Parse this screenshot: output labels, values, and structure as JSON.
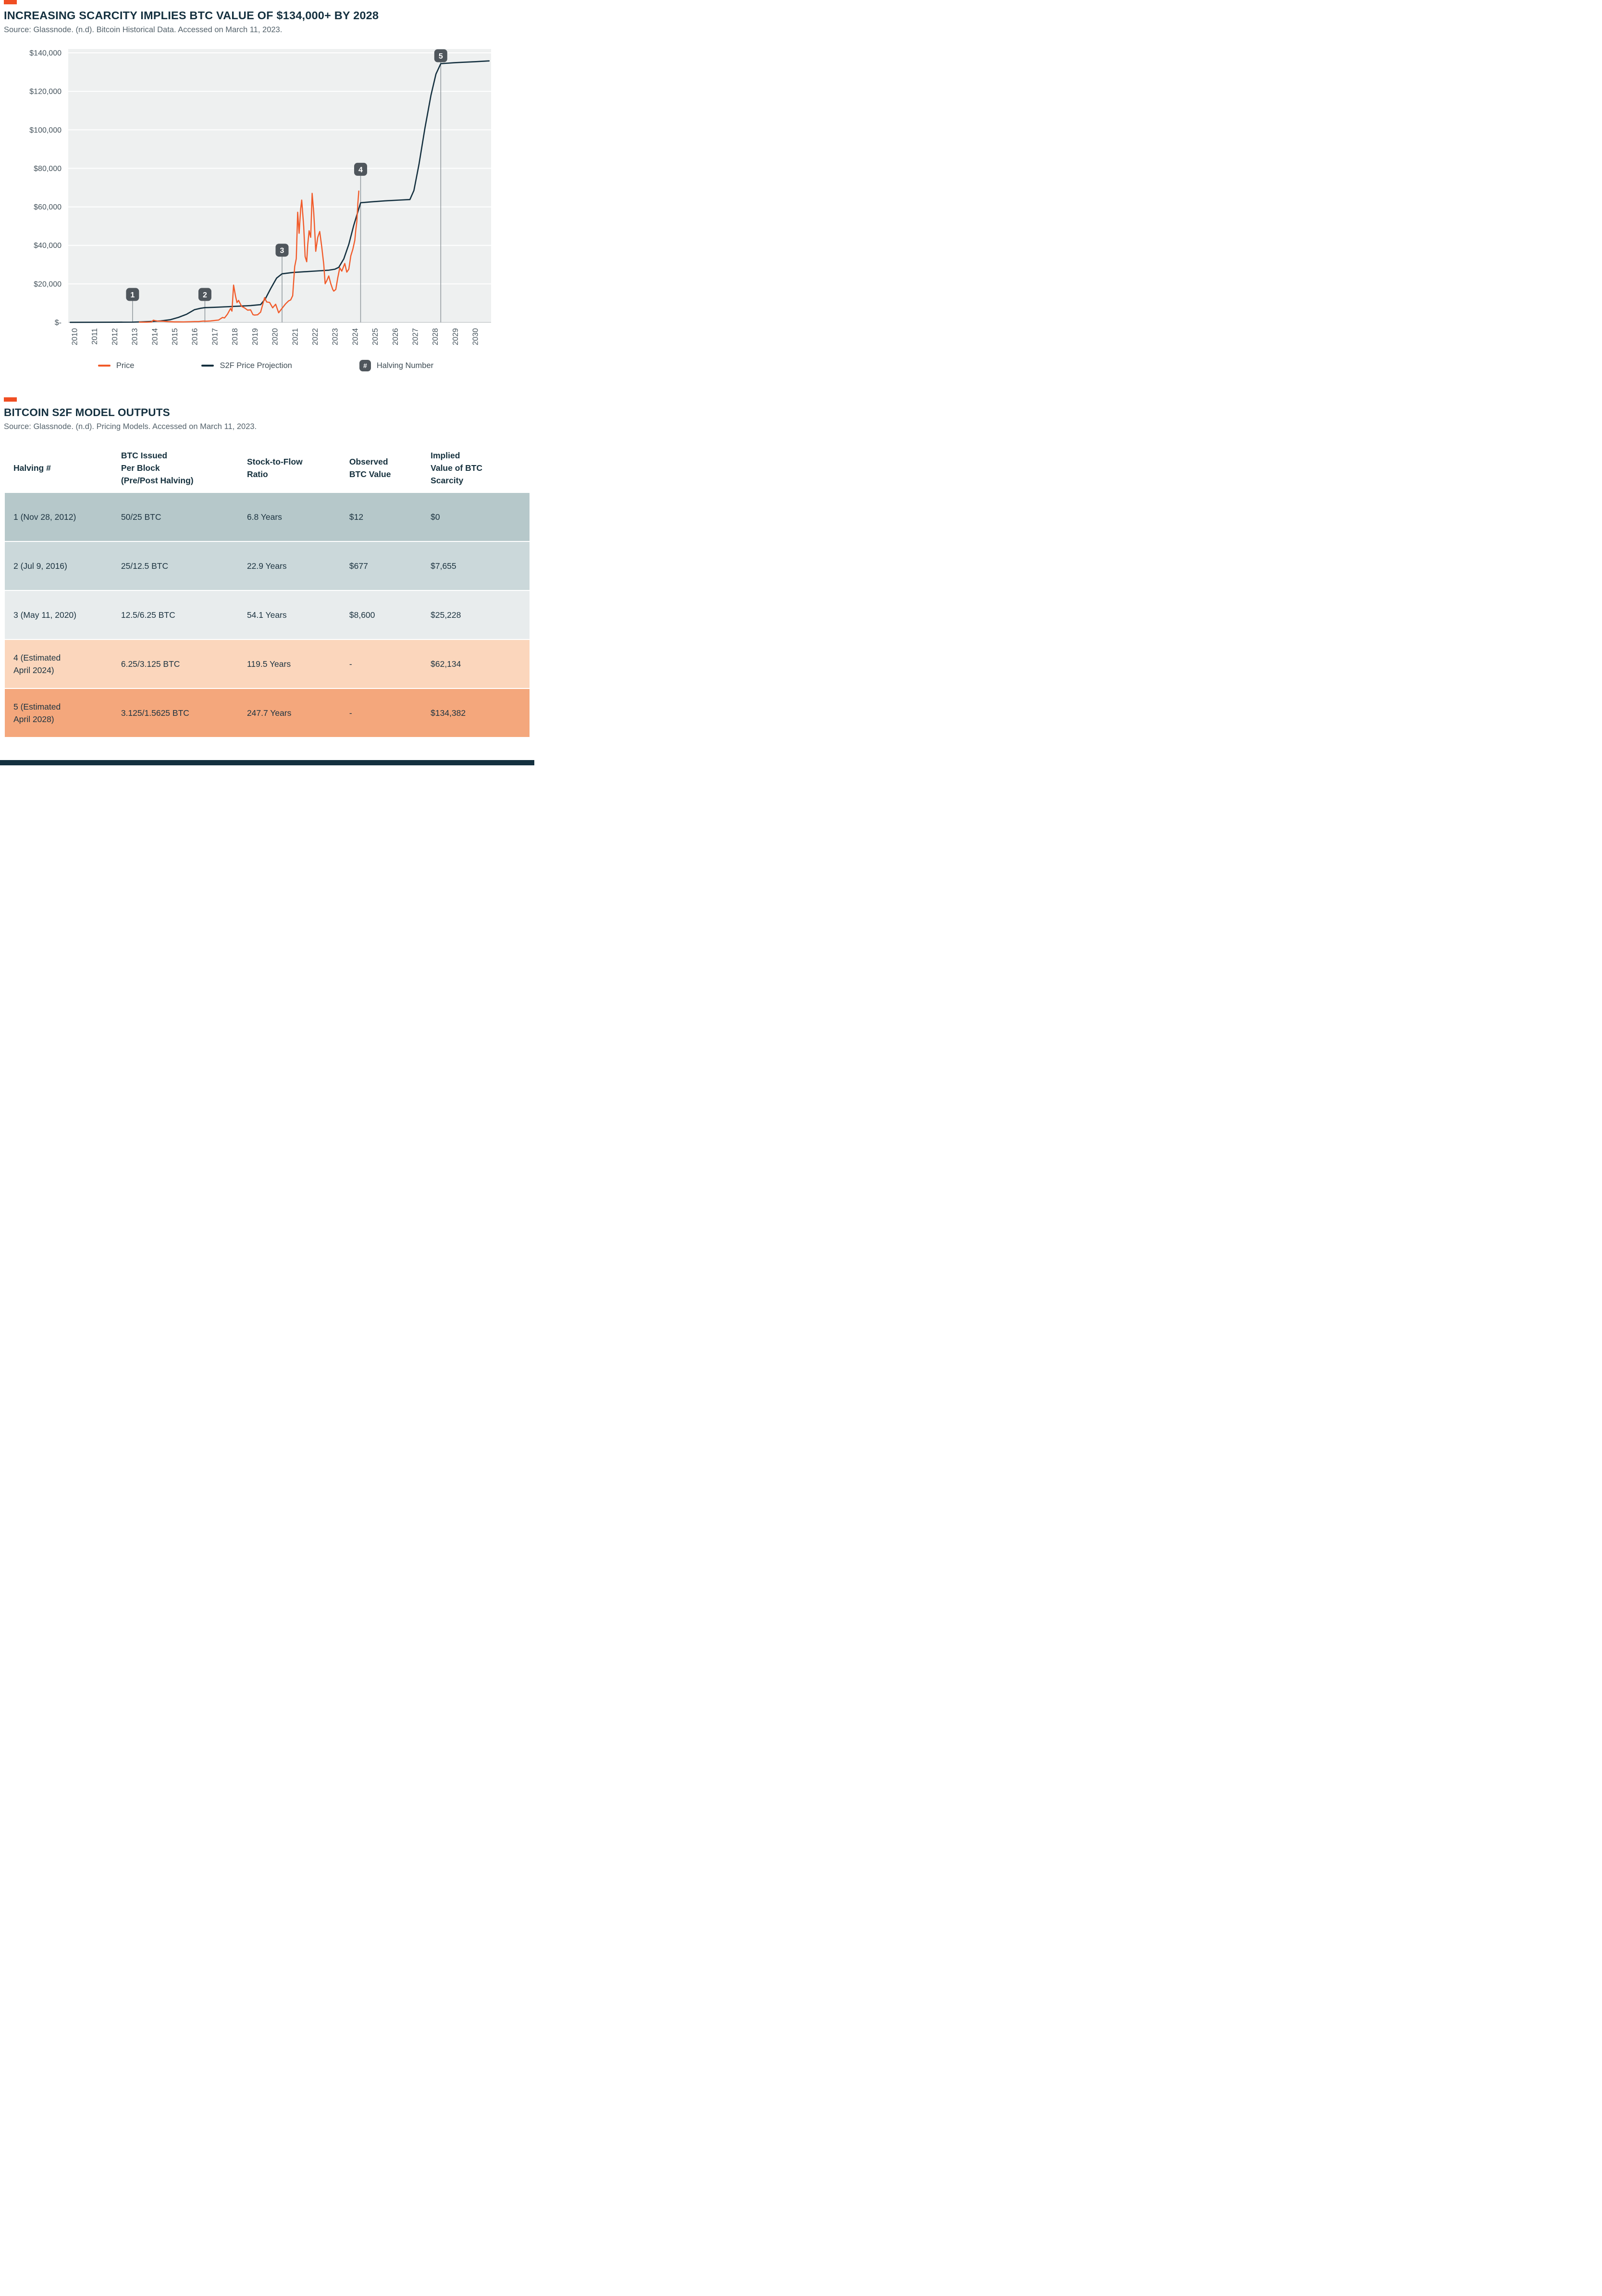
{
  "page": {
    "accent_color": "#f04e23",
    "footer_color": "#14303f",
    "background": "#ffffff"
  },
  "section_chart": {
    "title": "INCREASING SCARCITY IMPLIES BTC VALUE OF $134,000+ BY 2028",
    "source": "Source: Glassnode. (n.d). Bitcoin Historical Data. Accessed on March 11, 2023."
  },
  "chart_data": {
    "type": "line",
    "plot_bg": "#eef0f0",
    "gridline_color": "#ffffff",
    "axis_line_color": "#c3c8ca",
    "tick_label_color": "#45535c",
    "badge_color": "#4f565c",
    "stem_color": "#8f979c",
    "x_range": [
      2009.7,
      2030.8
    ],
    "y_range": [
      0,
      140000
    ],
    "x_ticks": [
      2010,
      2011,
      2012,
      2013,
      2014,
      2015,
      2016,
      2017,
      2018,
      2019,
      2020,
      2021,
      2022,
      2023,
      2024,
      2025,
      2026,
      2027,
      2028,
      2029,
      2030
    ],
    "y_ticks": [
      {
        "label": "$-",
        "value": 0
      },
      {
        "label": "$20,000",
        "value": 20000
      },
      {
        "label": "$40,000",
        "value": 40000
      },
      {
        "label": "$60,000",
        "value": 60000
      },
      {
        "label": "$80,000",
        "value": 80000
      },
      {
        "label": "$100,000",
        "value": 100000
      },
      {
        "label": "$120,000",
        "value": 120000
      },
      {
        "label": "$140,000",
        "value": 140000
      }
    ],
    "series": [
      {
        "name": "S2F Price Projection",
        "color": "#14303f",
        "width": 2.6,
        "points": [
          [
            2009.8,
            30
          ],
          [
            2011.0,
            45
          ],
          [
            2012.0,
            70
          ],
          [
            2012.91,
            130
          ],
          [
            2013.3,
            260
          ],
          [
            2013.8,
            460
          ],
          [
            2014.3,
            720
          ],
          [
            2014.8,
            1400
          ],
          [
            2015.2,
            2600
          ],
          [
            2015.6,
            4200
          ],
          [
            2016.0,
            6600
          ],
          [
            2016.3,
            7300
          ],
          [
            2016.52,
            7655
          ],
          [
            2017.0,
            7800
          ],
          [
            2017.6,
            8100
          ],
          [
            2018.2,
            8400
          ],
          [
            2018.8,
            8700
          ],
          [
            2019.3,
            9200
          ],
          [
            2019.55,
            12500
          ],
          [
            2019.8,
            17500
          ],
          [
            2020.1,
            23000
          ],
          [
            2020.37,
            25228
          ],
          [
            2020.9,
            25900
          ],
          [
            2021.5,
            26300
          ],
          [
            2022.1,
            26700
          ],
          [
            2022.7,
            27100
          ],
          [
            2023.0,
            27600
          ],
          [
            2023.2,
            28600
          ],
          [
            2023.45,
            33000
          ],
          [
            2023.7,
            40500
          ],
          [
            2023.95,
            50500
          ],
          [
            2024.29,
            62134
          ],
          [
            2024.8,
            62600
          ],
          [
            2025.5,
            63100
          ],
          [
            2026.2,
            63500
          ],
          [
            2026.75,
            63800
          ],
          [
            2026.95,
            68500
          ],
          [
            2027.2,
            82000
          ],
          [
            2027.5,
            101000
          ],
          [
            2027.8,
            118000
          ],
          [
            2028.05,
            129000
          ],
          [
            2028.29,
            134382
          ],
          [
            2029.0,
            134900
          ],
          [
            2030.0,
            135400
          ],
          [
            2030.7,
            135800
          ]
        ]
      },
      {
        "name": "Price",
        "color": "#f15a29",
        "width": 2.4,
        "points": [
          [
            2013.25,
            120
          ],
          [
            2013.6,
            100
          ],
          [
            2013.85,
            210
          ],
          [
            2013.95,
            1150
          ],
          [
            2014.05,
            860
          ],
          [
            2014.2,
            620
          ],
          [
            2014.45,
            580
          ],
          [
            2014.7,
            380
          ],
          [
            2015.0,
            240
          ],
          [
            2015.2,
            285
          ],
          [
            2015.45,
            235
          ],
          [
            2015.8,
            320
          ],
          [
            2016.0,
            435
          ],
          [
            2016.2,
            420
          ],
          [
            2016.45,
            670
          ],
          [
            2016.6,
            610
          ],
          [
            2016.8,
            735
          ],
          [
            2017.0,
            985
          ],
          [
            2017.2,
            1200
          ],
          [
            2017.4,
            2550
          ],
          [
            2017.5,
            2300
          ],
          [
            2017.65,
            4350
          ],
          [
            2017.8,
            7200
          ],
          [
            2017.87,
            5850
          ],
          [
            2017.95,
            19350
          ],
          [
            2018.05,
            13600
          ],
          [
            2018.12,
            10300
          ],
          [
            2018.2,
            11400
          ],
          [
            2018.35,
            8300
          ],
          [
            2018.5,
            7500
          ],
          [
            2018.65,
            6350
          ],
          [
            2018.8,
            6500
          ],
          [
            2018.92,
            4000
          ],
          [
            2019.0,
            3800
          ],
          [
            2019.15,
            3950
          ],
          [
            2019.3,
            5350
          ],
          [
            2019.5,
            12850
          ],
          [
            2019.6,
            10600
          ],
          [
            2019.75,
            10350
          ],
          [
            2019.9,
            7550
          ],
          [
            2020.05,
            9400
          ],
          [
            2020.2,
            5000
          ],
          [
            2020.35,
            7050
          ],
          [
            2020.55,
            9650
          ],
          [
            2020.7,
            11200
          ],
          [
            2020.8,
            11650
          ],
          [
            2020.9,
            13850
          ],
          [
            2021.0,
            29000
          ],
          [
            2021.08,
            33100
          ],
          [
            2021.15,
            57200
          ],
          [
            2021.22,
            46300
          ],
          [
            2021.3,
            59100
          ],
          [
            2021.35,
            63500
          ],
          [
            2021.45,
            50000
          ],
          [
            2021.52,
            34200
          ],
          [
            2021.6,
            31500
          ],
          [
            2021.65,
            40300
          ],
          [
            2021.72,
            47600
          ],
          [
            2021.8,
            44200
          ],
          [
            2021.87,
            67000
          ],
          [
            2021.95,
            57200
          ],
          [
            2022.0,
            47600
          ],
          [
            2022.05,
            36900
          ],
          [
            2022.15,
            44100
          ],
          [
            2022.25,
            47200
          ],
          [
            2022.35,
            39200
          ],
          [
            2022.45,
            30100
          ],
          [
            2022.52,
            20100
          ],
          [
            2022.6,
            21600
          ],
          [
            2022.7,
            24100
          ],
          [
            2022.8,
            20100
          ],
          [
            2022.9,
            17100
          ],
          [
            2022.95,
            16250
          ],
          [
            2023.05,
            17100
          ],
          [
            2023.15,
            23100
          ],
          [
            2023.25,
            28350
          ],
          [
            2023.35,
            26600
          ],
          [
            2023.5,
            30600
          ],
          [
            2023.6,
            26100
          ],
          [
            2023.7,
            27600
          ],
          [
            2023.8,
            34600
          ],
          [
            2023.9,
            37900
          ],
          [
            2024.0,
            42600
          ],
          [
            2024.05,
            48100
          ],
          [
            2024.1,
            52200
          ],
          [
            2024.15,
            61600
          ],
          [
            2024.2,
            68200
          ]
        ]
      }
    ],
    "halvings": [
      {
        "number": "1",
        "year": 2012.91,
        "badge_value": 14500
      },
      {
        "number": "2",
        "year": 2016.52,
        "badge_value": 14500
      },
      {
        "number": "3",
        "year": 2020.37,
        "badge_value": 37500
      },
      {
        "number": "4",
        "year": 2024.29,
        "badge_value": 79500
      },
      {
        "number": "5",
        "year": 2028.29,
        "badge_value": 138500
      }
    ],
    "legend": [
      {
        "type": "line",
        "color": "#f15a29",
        "label": "Price"
      },
      {
        "type": "line",
        "color": "#14303f",
        "label": "S2F Price Projection"
      },
      {
        "type": "badge",
        "badge_text": "#",
        "label": "Halving Number"
      }
    ]
  },
  "section_table": {
    "title": "BITCOIN S2F MODEL OUTPUTS",
    "source": "Source: Glassnode. (n.d). Pricing Models. Accessed on March 11, 2023."
  },
  "table": {
    "headers": [
      "Halving #",
      "BTC Issued\nPer Block\n(Pre/Post Halving)",
      "Stock-to-Flow\nRatio",
      "Observed\nBTC Value",
      "Implied\nValue of BTC\nScarcity"
    ],
    "rows": [
      {
        "bg": "#b6c8ca",
        "cells": [
          "1 (Nov 28, 2012)",
          "50/25 BTC",
          "6.8 Years",
          "$12",
          "$0"
        ]
      },
      {
        "bg": "#cbd8da",
        "cells": [
          "2 (Jul 9, 2016)",
          "25/12.5 BTC",
          "22.9 Years",
          "$677",
          "$7,655"
        ]
      },
      {
        "bg": "#e8eced",
        "cells": [
          "3 (May 11, 2020)",
          "12.5/6.25 BTC",
          "54.1 Years",
          "$8,600",
          "$25,228"
        ]
      },
      {
        "bg": "#fbd6bc",
        "cells": [
          "4 (Estimated\nApril 2024)",
          "6.25/3.125 BTC",
          "119.5 Years",
          "-",
          "$62,134"
        ]
      },
      {
        "bg": "#f4a77c",
        "cells": [
          "5 (Estimated\nApril 2028)",
          "3.125/1.5625 BTC",
          "247.7 Years",
          "-",
          "$134,382"
        ]
      }
    ]
  }
}
